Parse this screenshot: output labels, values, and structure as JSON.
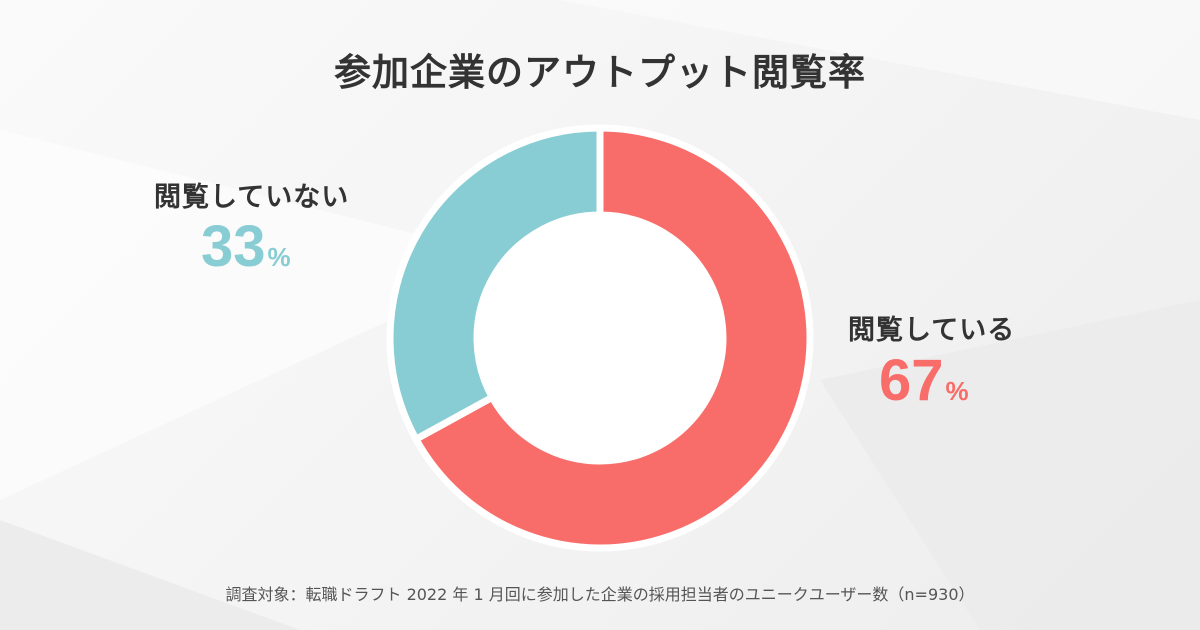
{
  "chart_data": {
    "type": "pie",
    "title": "参加企業のアウトプット閲覧率",
    "categories": [
      "閲覧している",
      "閲覧していない"
    ],
    "values": [
      67,
      33
    ],
    "unit": "%",
    "colors": [
      "#f86d69",
      "#88cdd3"
    ],
    "note": "調査対象：転職ドラフト 2022 年 1 月回に参加した企業の採用担当者のユニークユーザー数（n=930）"
  },
  "labels": {
    "read": "閲覧している",
    "read_value": "67",
    "unread": "閲覧していない",
    "unread_value": "33",
    "percent_sign": "%"
  }
}
